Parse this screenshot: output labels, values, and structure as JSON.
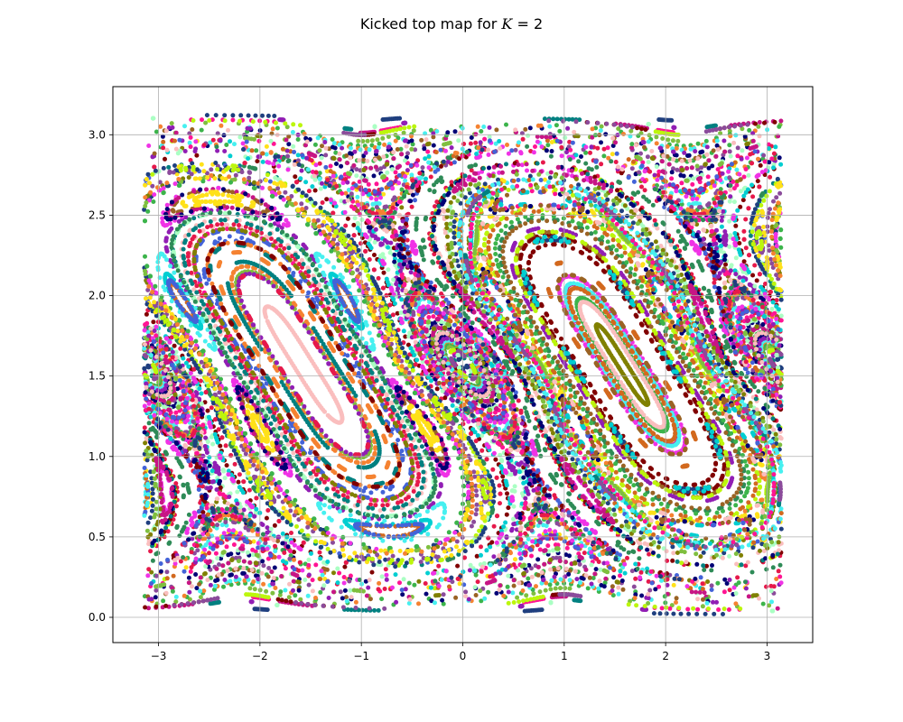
{
  "chart_data": {
    "type": "scatter",
    "title": "Kicked top map for K = 2",
    "title_parts": {
      "prefix": "Kicked top map for ",
      "variable": "K",
      "equals": " = ",
      "value": "2"
    },
    "xlabel": "",
    "ylabel": "",
    "xlim": [
      -3.45,
      3.45
    ],
    "ylim": [
      -0.157,
      3.299
    ],
    "x_ticks": [
      -3,
      -2,
      -1,
      0,
      1,
      2,
      3
    ],
    "x_tick_labels": [
      "−3",
      "−2",
      "−1",
      "0",
      "1",
      "2",
      "3"
    ],
    "y_ticks": [
      0.0,
      0.5,
      1.0,
      1.5,
      2.0,
      2.5,
      3.0
    ],
    "y_tick_labels": [
      "0.0",
      "0.5",
      "1.0",
      "1.5",
      "2.0",
      "2.5",
      "3.0"
    ],
    "grid": true,
    "legend": "none",
    "x_range": [
      -3.1416,
      3.1416
    ],
    "y_range": [
      0.0,
      3.1416
    ],
    "orbit_count": 180,
    "points_per_orbit": 120,
    "kick_strength": 2,
    "marker_size": 2.5,
    "colors": [
      "#e6194b",
      "#3cb44b",
      "#ffe119",
      "#4363d8",
      "#f58231",
      "#911eb4",
      "#46f0f0",
      "#f032e6",
      "#bcf60c",
      "#fabebe",
      "#008080",
      "#9a6324",
      "#800000",
      "#aaffc3",
      "#808000",
      "#000075",
      "#1f3f7f",
      "#ff1493",
      "#8b4b9b",
      "#7fbf3f",
      "#00ced1",
      "#c71585",
      "#2e8b57",
      "#d2691e"
    ],
    "spine_color": "#000000",
    "grid_color": "#b0b0b0"
  }
}
